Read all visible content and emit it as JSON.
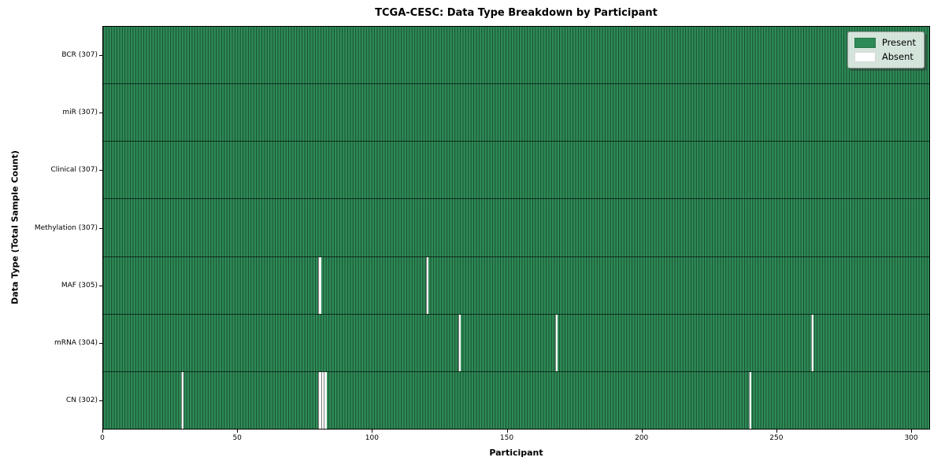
{
  "chart_data": {
    "type": "heatmap",
    "title": "TCGA-CESC: Data Type Breakdown by Participant",
    "xlabel": "Participant",
    "ylabel": "Data Type (Total Sample Count)",
    "n_participants": 307,
    "x_ticks": [
      0,
      50,
      100,
      150,
      200,
      250,
      300
    ],
    "colors": {
      "present": "#2e8b57",
      "absent": "#ffffff"
    },
    "legend": [
      {
        "label": "Present",
        "color": "#2e8b57"
      },
      {
        "label": "Absent",
        "color": "#ffffff"
      }
    ],
    "rows": [
      {
        "label": "BCR (307)",
        "total": 307,
        "absent_participants": []
      },
      {
        "label": "miR (307)",
        "total": 307,
        "absent_participants": []
      },
      {
        "label": "Clinical (307)",
        "total": 307,
        "absent_participants": []
      },
      {
        "label": "Methylation (307)",
        "total": 307,
        "absent_participants": []
      },
      {
        "label": "MAF (305)",
        "total": 305,
        "absent_participants": [
          80,
          120
        ]
      },
      {
        "label": "mRNA (304)",
        "total": 304,
        "absent_participants": [
          132,
          168,
          263
        ]
      },
      {
        "label": "CN (302)",
        "total": 302,
        "absent_participants": [
          29,
          80,
          81,
          82,
          240
        ]
      }
    ]
  }
}
